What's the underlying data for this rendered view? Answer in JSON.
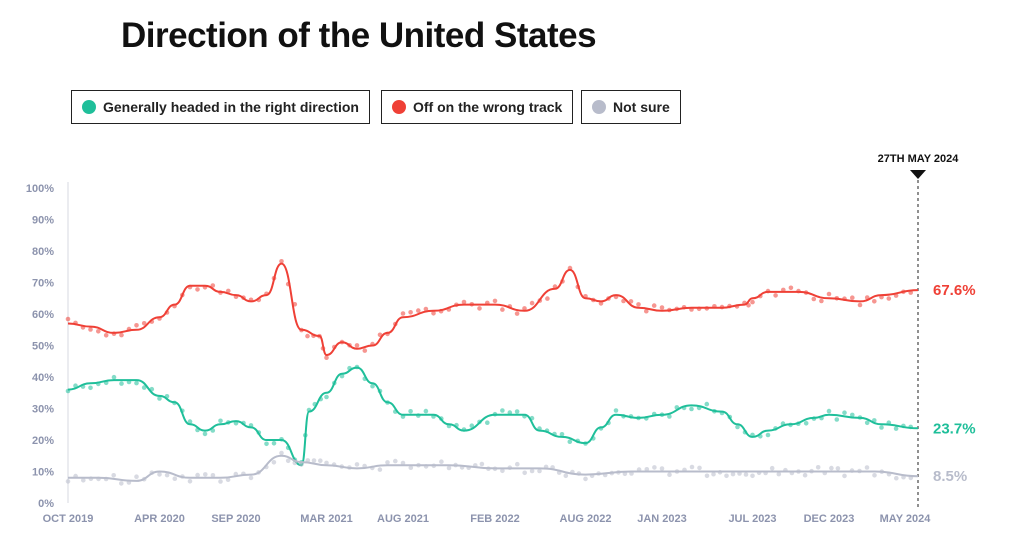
{
  "title": "Direction of the United States",
  "legend": [
    {
      "label": "Generally headed in the right direction",
      "color": "#1fbf9a"
    },
    {
      "label": "Off on the wrong track",
      "color": "#ef4036"
    },
    {
      "label": "Not sure",
      "color": "#b8bccb"
    }
  ],
  "chart_data": {
    "type": "line",
    "title": "Direction of the United States",
    "xlabel": "",
    "ylabel": "",
    "ylim": [
      0,
      100
    ],
    "y_ticks": [
      "0%",
      "10%",
      "20%",
      "30%",
      "40%",
      "50%",
      "60%",
      "70%",
      "80%",
      "90%",
      "100%"
    ],
    "x_ticks": [
      "OCT 2019",
      "APR 2020",
      "SEP 2020",
      "MAR 2021",
      "AUG 2021",
      "FEB 2022",
      "AUG 2022",
      "JAN 2023",
      "JUL 2023",
      "DEC 2023",
      "MAY 2024"
    ],
    "x_tick_dates": [
      "2019-10-01",
      "2020-04-01",
      "2020-09-01",
      "2021-03-01",
      "2021-08-01",
      "2022-02-01",
      "2022-08-01",
      "2023-01-01",
      "2023-07-01",
      "2023-12-01",
      "2024-05-01"
    ],
    "x_range": [
      "2019-10-01",
      "2024-05-27"
    ],
    "grid": false,
    "legend_position": "top-left",
    "marker_date": "2024-05-27",
    "marker_label": "27TH MAY 2024",
    "series": [
      {
        "name": "Generally headed in the right direction",
        "color": "#1fbf9a",
        "end_label": "23.7%",
        "points": [
          [
            "2019-10-01",
            36
          ],
          [
            "2019-11-15",
            38
          ],
          [
            "2020-01-01",
            39
          ],
          [
            "2020-02-15",
            39
          ],
          [
            "2020-04-01",
            34
          ],
          [
            "2020-05-01",
            32
          ],
          [
            "2020-06-01",
            25
          ],
          [
            "2020-07-01",
            23
          ],
          [
            "2020-08-01",
            25
          ],
          [
            "2020-09-01",
            26
          ],
          [
            "2020-10-01",
            24
          ],
          [
            "2020-11-01",
            20
          ],
          [
            "2020-12-01",
            20
          ],
          [
            "2021-01-10",
            12
          ],
          [
            "2021-01-25",
            29
          ],
          [
            "2021-03-01",
            35
          ],
          [
            "2021-04-01",
            41
          ],
          [
            "2021-05-01",
            43
          ],
          [
            "2021-06-01",
            38
          ],
          [
            "2021-07-01",
            32
          ],
          [
            "2021-08-01",
            28
          ],
          [
            "2021-10-01",
            28
          ],
          [
            "2021-11-01",
            25
          ],
          [
            "2021-12-01",
            23
          ],
          [
            "2022-02-01",
            28
          ],
          [
            "2022-04-01",
            28
          ],
          [
            "2022-05-01",
            23
          ],
          [
            "2022-06-15",
            21
          ],
          [
            "2022-08-01",
            19
          ],
          [
            "2022-09-01",
            24
          ],
          [
            "2022-10-01",
            28
          ],
          [
            "2022-11-15",
            27
          ],
          [
            "2023-01-01",
            28
          ],
          [
            "2023-03-01",
            31
          ],
          [
            "2023-05-01",
            29
          ],
          [
            "2023-06-01",
            25
          ],
          [
            "2023-07-01",
            21
          ],
          [
            "2023-08-01",
            23
          ],
          [
            "2023-09-15",
            25
          ],
          [
            "2023-11-01",
            27
          ],
          [
            "2023-12-01",
            28
          ],
          [
            "2024-02-01",
            27
          ],
          [
            "2024-03-15",
            25
          ],
          [
            "2024-05-27",
            23.7
          ]
        ]
      },
      {
        "name": "Off on the wrong track",
        "color": "#ef4036",
        "end_label": "67.6%",
        "points": [
          [
            "2019-10-01",
            57
          ],
          [
            "2019-11-15",
            56
          ],
          [
            "2020-01-01",
            54
          ],
          [
            "2020-02-15",
            55
          ],
          [
            "2020-04-01",
            59
          ],
          [
            "2020-05-01",
            63
          ],
          [
            "2020-06-01",
            69
          ],
          [
            "2020-07-01",
            69
          ],
          [
            "2020-08-01",
            67
          ],
          [
            "2020-09-01",
            66
          ],
          [
            "2020-10-01",
            64
          ],
          [
            "2020-11-01",
            66
          ],
          [
            "2020-12-01",
            76
          ],
          [
            "2021-01-10",
            55
          ],
          [
            "2021-02-15",
            53
          ],
          [
            "2021-03-01",
            47
          ],
          [
            "2021-04-01",
            51
          ],
          [
            "2021-05-01",
            49
          ],
          [
            "2021-06-01",
            50
          ],
          [
            "2021-07-01",
            54
          ],
          [
            "2021-08-01",
            59
          ],
          [
            "2021-10-01",
            61
          ],
          [
            "2021-12-01",
            63
          ],
          [
            "2022-02-01",
            63
          ],
          [
            "2022-04-01",
            61
          ],
          [
            "2022-06-01",
            68
          ],
          [
            "2022-07-01",
            74
          ],
          [
            "2022-08-01",
            65
          ],
          [
            "2022-09-01",
            64
          ],
          [
            "2022-10-01",
            66
          ],
          [
            "2022-11-15",
            62
          ],
          [
            "2023-01-01",
            61
          ],
          [
            "2023-03-01",
            62
          ],
          [
            "2023-05-01",
            62
          ],
          [
            "2023-06-15",
            63
          ],
          [
            "2023-07-01",
            65
          ],
          [
            "2023-08-01",
            67
          ],
          [
            "2023-10-01",
            67
          ],
          [
            "2023-12-01",
            65
          ],
          [
            "2024-02-01",
            64
          ],
          [
            "2024-03-15",
            66
          ],
          [
            "2024-05-27",
            67.6
          ]
        ]
      },
      {
        "name": "Not sure",
        "color": "#b8bccb",
        "end_label": "8.5%",
        "points": [
          [
            "2019-10-01",
            8
          ],
          [
            "2019-12-01",
            8
          ],
          [
            "2020-02-15",
            7
          ],
          [
            "2020-04-01",
            10
          ],
          [
            "2020-06-01",
            8
          ],
          [
            "2020-08-01",
            8
          ],
          [
            "2020-10-01",
            9
          ],
          [
            "2020-12-01",
            15
          ],
          [
            "2021-01-10",
            13
          ],
          [
            "2021-03-01",
            12
          ],
          [
            "2021-05-01",
            11
          ],
          [
            "2021-07-01",
            12
          ],
          [
            "2021-09-01",
            12
          ],
          [
            "2021-11-01",
            12
          ],
          [
            "2022-02-01",
            11
          ],
          [
            "2022-05-01",
            11
          ],
          [
            "2022-08-01",
            9
          ],
          [
            "2022-11-01",
            10
          ],
          [
            "2023-01-01",
            10
          ],
          [
            "2023-04-01",
            10
          ],
          [
            "2023-07-01",
            10
          ],
          [
            "2023-10-01",
            10
          ],
          [
            "2024-01-01",
            10
          ],
          [
            "2024-03-01",
            10
          ],
          [
            "2024-05-27",
            8.5
          ]
        ]
      }
    ]
  }
}
